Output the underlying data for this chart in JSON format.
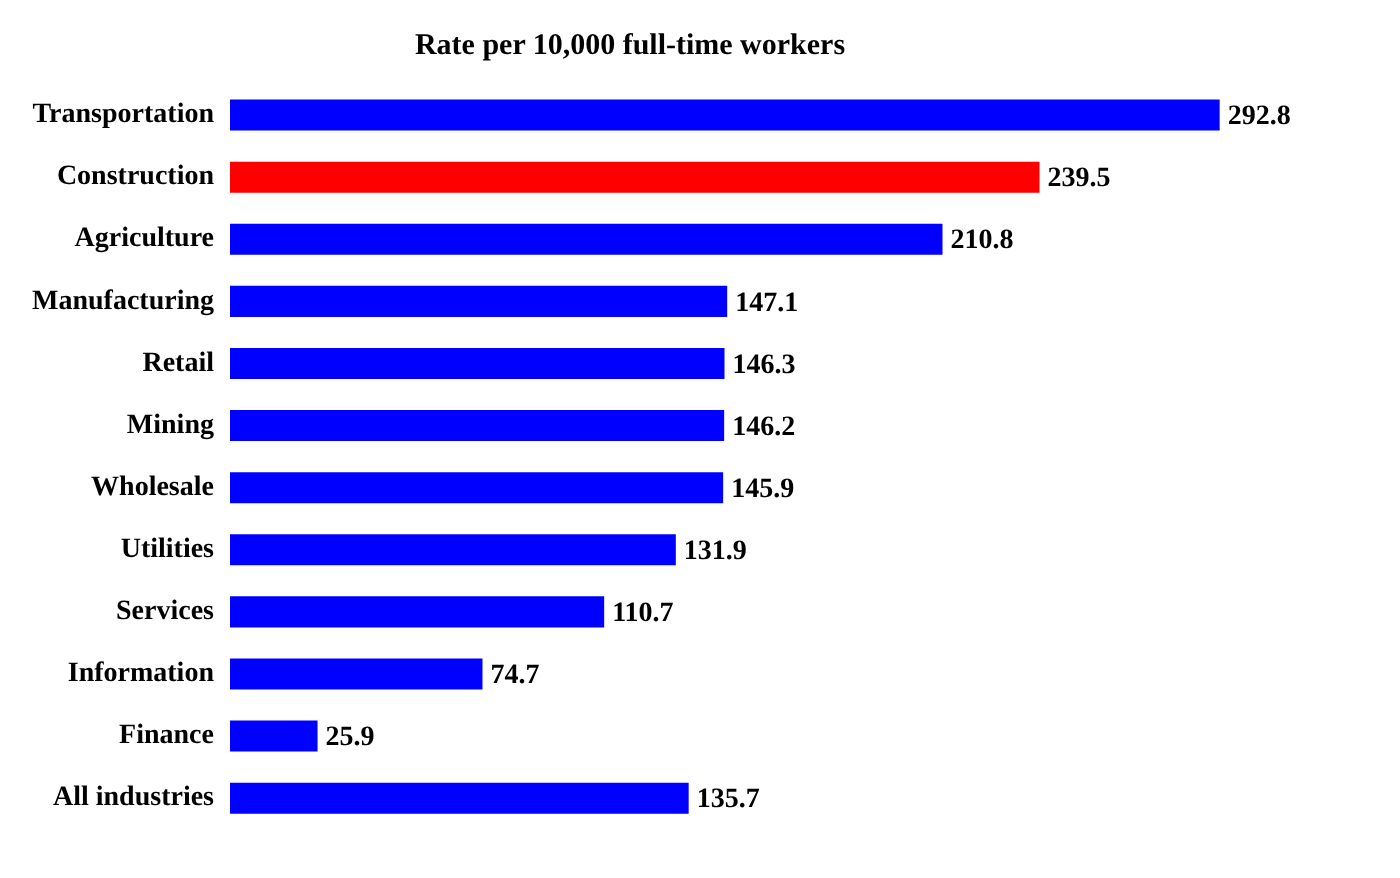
{
  "chart_data": {
    "type": "bar",
    "orientation": "horizontal",
    "title": "Rate per 10,000 full-time workers",
    "categories": [
      "Transportation",
      "Construction",
      "Agriculture",
      "Manufacturing",
      "Retail",
      "Mining",
      "Wholesale",
      "Utilities",
      "Services",
      "Information",
      "Finance",
      "All industries"
    ],
    "values": [
      292.8,
      239.5,
      210.8,
      147.1,
      146.3,
      146.2,
      145.9,
      131.9,
      110.7,
      74.7,
      25.9,
      135.7
    ],
    "colors": [
      "#0000ff",
      "#ff0000",
      "#0000ff",
      "#0000ff",
      "#0000ff",
      "#0000ff",
      "#0000ff",
      "#0000ff",
      "#0000ff",
      "#0000ff",
      "#0000ff",
      "#0000ff"
    ],
    "data_labels": true,
    "grid": false,
    "legend": false
  }
}
